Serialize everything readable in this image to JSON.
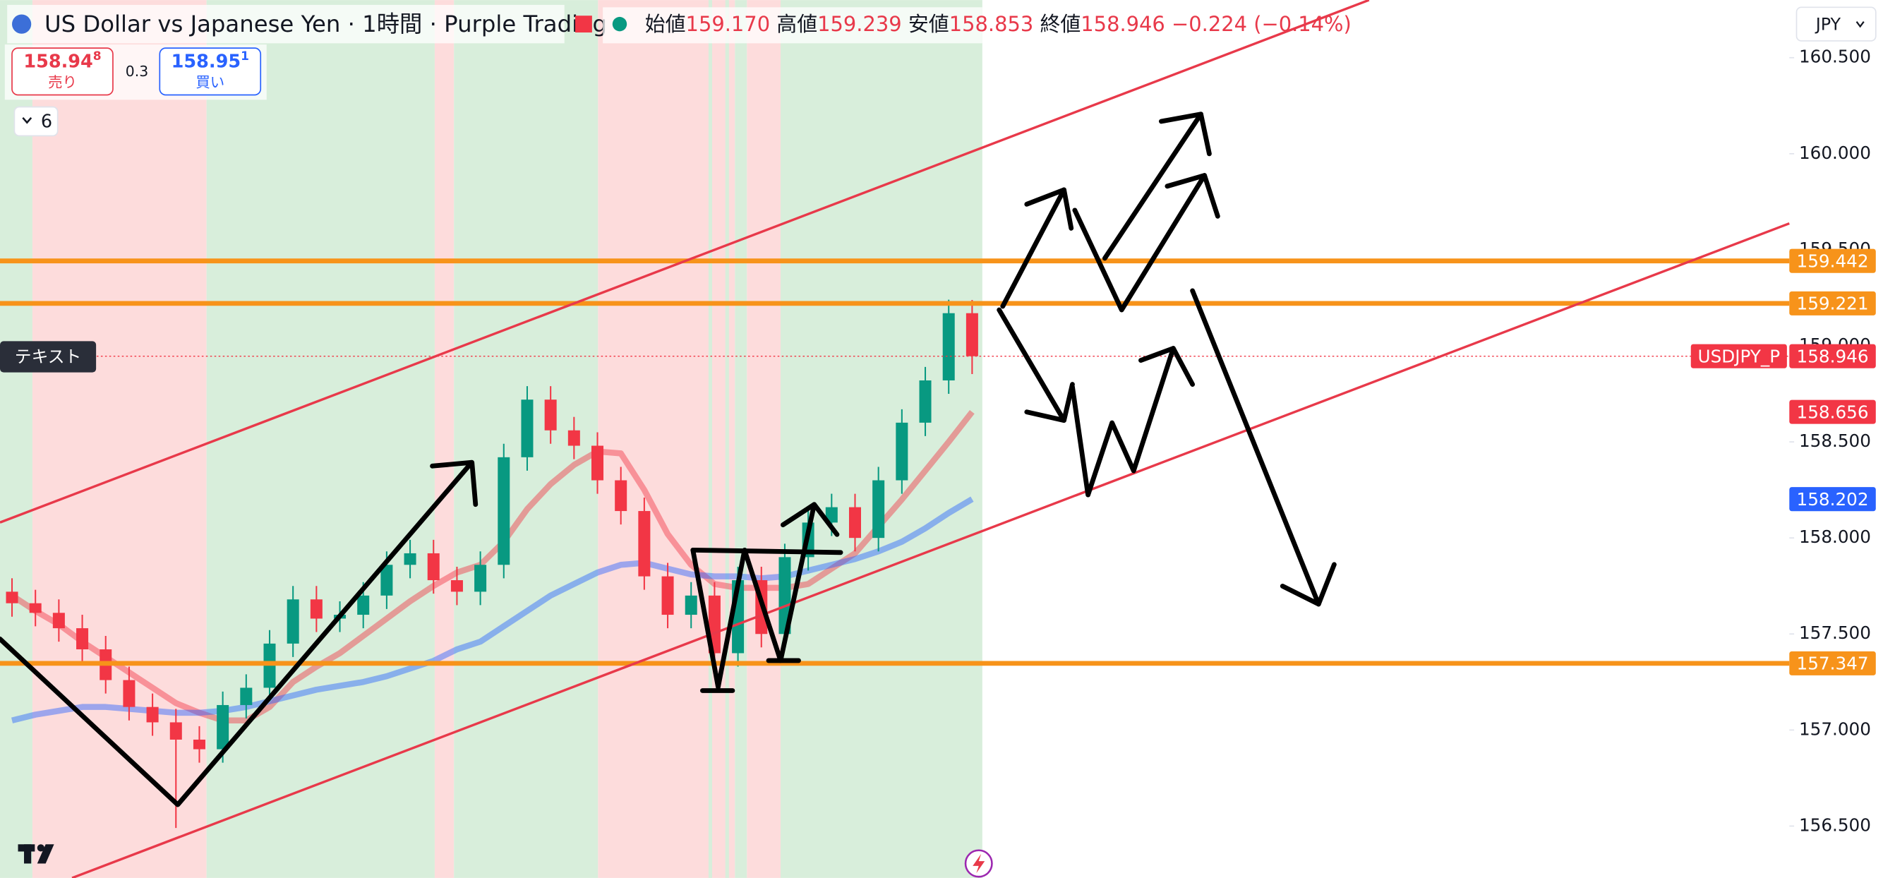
{
  "header": {
    "title": "US Dollar vs Japanese Yen · 1時間 · Purple Trading",
    "ohlc": [
      {
        "label": "始値",
        "value": "159.170"
      },
      {
        "label": "高値",
        "value": "159.239"
      },
      {
        "label": "安値",
        "value": "158.853"
      },
      {
        "label": "終値",
        "value": "158.946"
      }
    ],
    "change": "−0.224 (−0.14%)"
  },
  "trade": {
    "sell_price": "158.94",
    "sell_pip": "8",
    "sell_label": "売り",
    "spread": "0.3",
    "buy_price": "158.95",
    "buy_pip": "1",
    "buy_label": "買い"
  },
  "indicators_count": "6",
  "currency": "JPY",
  "text_label": "テキスト",
  "chart_data": {
    "type": "candlestick",
    "symbol": "USDJPY_P",
    "open": [
      157.72,
      157.66,
      157.61,
      157.53,
      157.42,
      157.26,
      157.12,
      157.04,
      156.95,
      156.9,
      157.13,
      157.22,
      157.45,
      157.68,
      157.58,
      157.6,
      157.7,
      157.86,
      157.92,
      157.78,
      157.72,
      157.86,
      158.42,
      158.72,
      158.56,
      158.48,
      158.3,
      158.14,
      157.8,
      157.6,
      157.7,
      157.4,
      157.78,
      157.5,
      157.9,
      158.08,
      158.16,
      158.0,
      158.3,
      158.6,
      158.82,
      159.17
    ],
    "high": [
      157.79,
      157.73,
      157.68,
      157.6,
      157.49,
      157.33,
      157.19,
      157.11,
      157.02,
      157.2,
      157.29,
      157.52,
      157.75,
      157.75,
      157.67,
      157.77,
      157.93,
      157.99,
      157.99,
      157.85,
      157.93,
      158.49,
      158.79,
      158.79,
      158.63,
      158.55,
      158.37,
      158.21,
      157.87,
      157.77,
      157.77,
      157.85,
      157.85,
      157.97,
      158.15,
      158.23,
      158.23,
      158.37,
      158.67,
      158.89,
      159.24,
      159.239
    ],
    "low": [
      157.59,
      157.54,
      157.46,
      157.35,
      157.19,
      157.05,
      156.97,
      156.49,
      156.83,
      156.83,
      157.06,
      157.15,
      157.38,
      157.51,
      157.51,
      157.53,
      157.63,
      157.79,
      157.71,
      157.65,
      157.65,
      157.79,
      158.35,
      158.49,
      158.41,
      158.23,
      158.07,
      157.73,
      157.53,
      157.53,
      157.33,
      157.33,
      157.43,
      157.43,
      157.83,
      158.01,
      157.93,
      157.93,
      158.23,
      158.53,
      158.75,
      158.853
    ],
    "close": [
      157.66,
      157.61,
      157.53,
      157.42,
      157.26,
      157.12,
      157.04,
      156.95,
      156.9,
      157.13,
      157.22,
      157.45,
      157.68,
      157.58,
      157.6,
      157.7,
      157.86,
      157.92,
      157.78,
      157.72,
      157.86,
      158.42,
      158.72,
      158.56,
      158.48,
      158.3,
      158.14,
      157.8,
      157.6,
      157.7,
      157.4,
      157.78,
      157.5,
      157.9,
      158.08,
      158.16,
      158.0,
      158.3,
      158.6,
      158.82,
      159.17,
      158.946
    ],
    "last_label": "158.946",
    "up_color": "#089981",
    "down_color": "#f23645",
    "moving_averages": [
      {
        "color": "#f23645",
        "last_label": "158.656",
        "values": [
          157.7,
          157.62,
          157.55,
          157.46,
          157.38,
          157.3,
          157.22,
          157.14,
          157.09,
          157.05,
          157.05,
          157.12,
          157.25,
          157.33,
          157.4,
          157.49,
          157.58,
          157.67,
          157.75,
          157.82,
          157.86,
          157.98,
          158.15,
          158.28,
          158.38,
          158.45,
          158.44,
          158.25,
          158.02,
          157.86,
          157.76,
          157.74,
          157.74,
          157.74,
          157.76,
          157.84,
          157.92,
          158.06,
          158.2,
          158.35,
          158.5,
          158.656
        ]
      },
      {
        "color": "#2962ff",
        "last_label": "158.202",
        "values": [
          157.05,
          157.08,
          157.1,
          157.12,
          157.12,
          157.11,
          157.1,
          157.09,
          157.09,
          157.1,
          157.12,
          157.15,
          157.18,
          157.21,
          157.23,
          157.25,
          157.28,
          157.32,
          157.36,
          157.42,
          157.46,
          157.54,
          157.62,
          157.7,
          157.76,
          157.82,
          157.86,
          157.87,
          157.84,
          157.81,
          157.8,
          157.8,
          157.79,
          157.8,
          157.83,
          157.86,
          157.89,
          157.93,
          157.98,
          158.05,
          158.13,
          158.202
        ]
      }
    ],
    "levels": [
      {
        "value": 159.442,
        "label": "159.442",
        "color": "#f7931a"
      },
      {
        "value": 159.221,
        "label": "159.221",
        "color": "#f7931a"
      },
      {
        "value": 157.347,
        "label": "157.347",
        "color": "#f7931a"
      }
    ],
    "ylim": [
      156.23,
      160.8
    ],
    "yticks": [
      {
        "value": 160.5,
        "label": "160.500"
      },
      {
        "value": 160,
        "label": "160.000"
      },
      {
        "value": 159.5,
        "label": "159.500"
      },
      {
        "value": 159,
        "label": "159.000"
      },
      {
        "value": 158.5,
        "label": "158.500"
      },
      {
        "value": 158,
        "label": "158.000"
      },
      {
        "value": 157.5,
        "label": "157.500"
      },
      {
        "value": 157,
        "label": "157.000"
      },
      {
        "value": 156.5,
        "label": "156.500"
      }
    ]
  }
}
